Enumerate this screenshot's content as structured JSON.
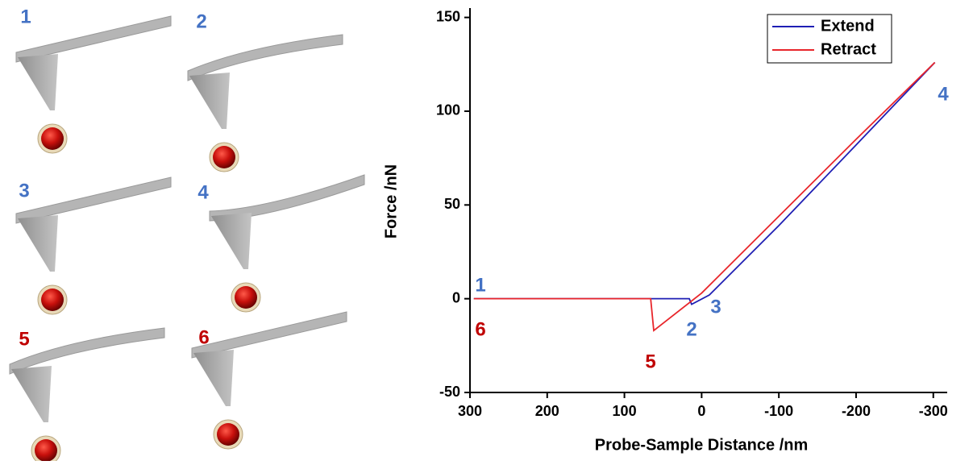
{
  "chart_data": {
    "type": "line",
    "x_label": "Probe-Sample Distance  /nm",
    "y_label": "Force  /nN",
    "xlim": [
      300,
      -318
    ],
    "ylim": [
      -50,
      155
    ],
    "xticks": [
      300,
      200,
      100,
      0,
      -100,
      -200,
      -300
    ],
    "yticks": [
      -50,
      0,
      50,
      100,
      150
    ],
    "legend": "top-right",
    "series": [
      {
        "name": "Extend",
        "color": "#1f1fb4",
        "x": [
          295,
          70,
          16,
          13,
          -10,
          -100,
          -200,
          -302
        ],
        "values": [
          0,
          0,
          0,
          -3,
          2,
          39,
          82,
          126
        ]
      },
      {
        "name": "Retract",
        "color": "#e8262b",
        "x": [
          -302,
          -200,
          -100,
          0,
          62,
          66,
          295
        ],
        "values": [
          126,
          85,
          44,
          3,
          -17,
          0,
          0
        ]
      }
    ],
    "annotations": [
      {
        "text": "1",
        "color": "#4472c4"
      },
      {
        "text": "6",
        "color": "#c00000"
      },
      {
        "text": "2",
        "color": "#4472c4"
      },
      {
        "text": "3",
        "color": "#4472c4"
      },
      {
        "text": "5",
        "color": "#c00000"
      },
      {
        "text": "4",
        "color": "#4472c4"
      }
    ]
  },
  "diagram": {
    "panels": [
      {
        "label": "1",
        "color": "#4472c4"
      },
      {
        "label": "2",
        "color": "#4472c4"
      },
      {
        "label": "3",
        "color": "#4472c4"
      },
      {
        "label": "4",
        "color": "#4472c4"
      },
      {
        "label": "5",
        "color": "#c00000"
      },
      {
        "label": "6",
        "color": "#c00000"
      }
    ]
  }
}
